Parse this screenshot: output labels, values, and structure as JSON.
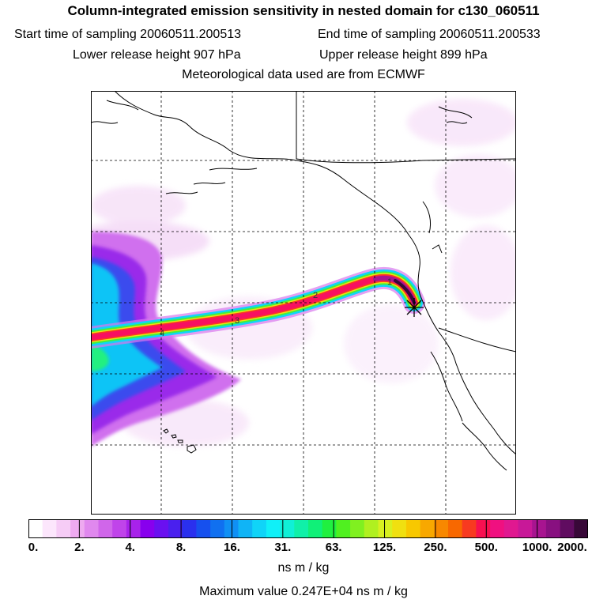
{
  "header": {
    "title": "Column-integrated emission sensitivity in nested domain for c130_060511",
    "start_label": "Start time of sampling 20060511.200513",
    "end_label": "End time of sampling 20060511.200533",
    "lower_label": "Lower release height  907 hPa",
    "upper_label": "Upper release height  899 hPa",
    "met_label": "Meteorological data used are from ECMWF"
  },
  "map": {
    "plume_day_labels": [
      "4",
      "3",
      "2",
      "1"
    ],
    "release_marker": "asterisk",
    "coastline_color": "#000000",
    "grid_style": "dashed"
  },
  "colorbar": {
    "ticks": [
      "0.",
      "2.",
      "4.",
      "8.",
      "16.",
      "31.",
      "63.",
      "125.",
      "250.",
      "500.",
      "1000.",
      "2000."
    ],
    "colors": [
      "#ffffff",
      "#fce6fc",
      "#f6ccf6",
      "#eeaaf0",
      "#e088ee",
      "#d066ea",
      "#c044ea",
      "#a822ea",
      "#8800ee",
      "#6a10f0",
      "#4a20ee",
      "#2a30ee",
      "#1650ee",
      "#1070f0",
      "#1090f4",
      "#10b4f6",
      "#10d4f8",
      "#10f0f8",
      "#10f0d6",
      "#10f0a8",
      "#10f078",
      "#20f040",
      "#50f020",
      "#80f020",
      "#b0f020",
      "#d8f020",
      "#f0e010",
      "#f8c800",
      "#f8a800",
      "#f88800",
      "#f86800",
      "#f83a20",
      "#f81050",
      "#f01080",
      "#e01890",
      "#c81898",
      "#a81490",
      "#881080",
      "#600c60",
      "#380838"
    ],
    "units": "ns m / kg"
  },
  "footer": {
    "max_value": "Maximum value  0.247E+04 ns m / kg"
  }
}
